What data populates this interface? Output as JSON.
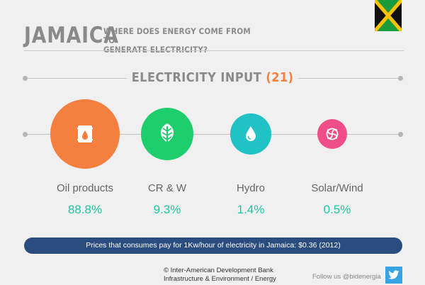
{
  "header": {
    "country": "JAMAICA",
    "question_line1": "WHERE DOES ENERGY COME FROM TO",
    "question_line2": "GENERATE ELECTRICITY?"
  },
  "section": {
    "title": "ELECTRICITY INPUT",
    "note_ref": "(21)"
  },
  "sources": [
    {
      "label": "Oil products",
      "value": "88.8%",
      "share": 88.8,
      "icon": "oil-barrel-icon",
      "color": "#f47f3e"
    },
    {
      "label": "CR & W",
      "value": "9.3%",
      "share": 9.3,
      "icon": "leaf-icon",
      "color": "#1ecd6b"
    },
    {
      "label": "Hydro",
      "value": "1.4%",
      "share": 1.4,
      "icon": "water-drop-icon",
      "color": "#20c2c6"
    },
    {
      "label": "Solar/Wind",
      "value": "0.5%",
      "share": 0.5,
      "icon": "swirl-icon",
      "color": "#ef4f86"
    }
  ],
  "price_note": "Prices that consumes pay for 1Kw/hour of electricity in Jamaica: $0.36 (2012)",
  "footer": {
    "credit_line1": "© Inter-American Development Bank",
    "credit_line2": "Infrastructure & Environment / Energy",
    "follow_text": "Follow us @bidenergia"
  },
  "colors": {
    "accent_orange": "#f47f3e",
    "value_teal": "#1dc79e",
    "bar_navy": "#2b4c7e",
    "twitter_blue": "#3aa3e3"
  }
}
